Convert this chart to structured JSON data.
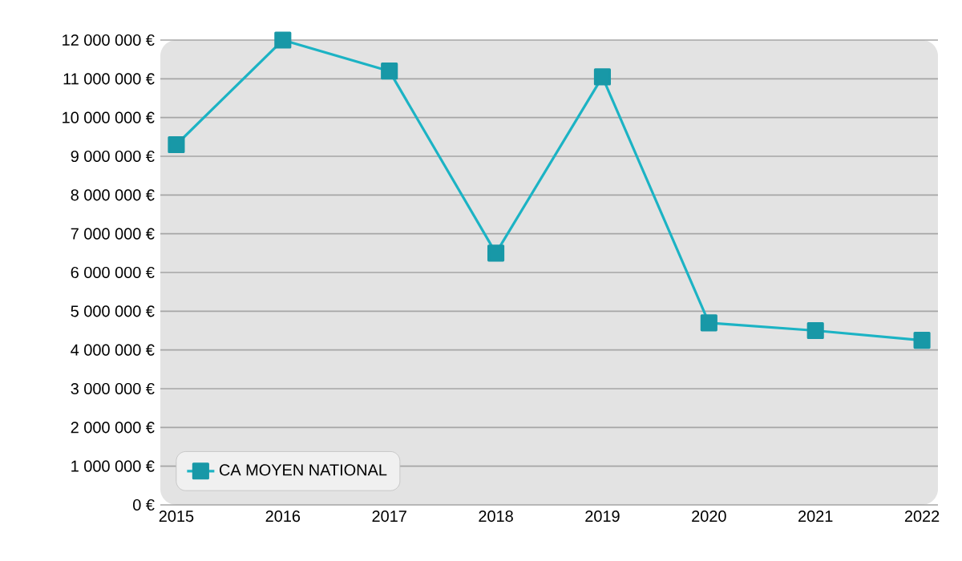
{
  "chart_data": {
    "type": "line",
    "categories": [
      "2015",
      "2016",
      "2017",
      "2018",
      "2019",
      "2020",
      "2021",
      "2022"
    ],
    "series": [
      {
        "name": "CA MOYEN NATIONAL",
        "color": "#1cb3c4",
        "values": [
          9300000,
          12000000,
          11200000,
          6500000,
          11050000,
          4700000,
          4500000,
          4250000
        ]
      }
    ],
    "ylim": [
      0,
      12000000
    ],
    "yticks": [
      {
        "value": 0,
        "label": "0 €"
      },
      {
        "value": 1000000,
        "label": "1 000 000 €"
      },
      {
        "value": 2000000,
        "label": "2 000 000 €"
      },
      {
        "value": 3000000,
        "label": "3 000 000 €"
      },
      {
        "value": 4000000,
        "label": "4 000 000 €"
      },
      {
        "value": 5000000,
        "label": "5 000 000 €"
      },
      {
        "value": 6000000,
        "label": "6 000 000 €"
      },
      {
        "value": 7000000,
        "label": "7 000 000 €"
      },
      {
        "value": 8000000,
        "label": "8 000 000 €"
      },
      {
        "value": 9000000,
        "label": "9 000 000 €"
      },
      {
        "value": 10000000,
        "label": "10 000 000 €"
      },
      {
        "value": 11000000,
        "label": "11 000 000 €"
      },
      {
        "value": 12000000,
        "label": "12 000 000 €"
      }
    ],
    "grid": "y",
    "legend": "bottom left",
    "marker": "square",
    "line_style": "solid"
  }
}
